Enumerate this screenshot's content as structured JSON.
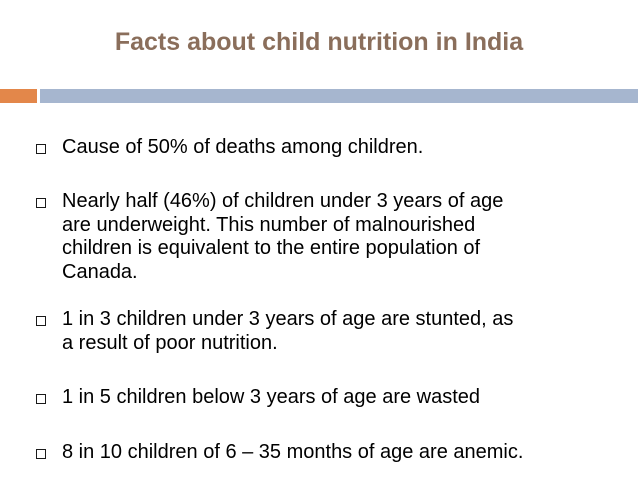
{
  "slide": {
    "title": "Facts about child nutrition in India",
    "colors": {
      "title": "#8a6e5b",
      "accent_orange": "#e3874a",
      "accent_blue": "#a6b6cf",
      "text": "#000000"
    },
    "bullet_icon": "square-bullet-icon",
    "bullets": [
      "Cause of 50% of deaths among children.",
      "Nearly half (46%) of children under 3 years of age\nare underweight. This number of malnourished\nchildren is equivalent to the entire population of\nCanada.",
      "1 in 3 children under 3 years of age are stunted, as\na result of poor nutrition.",
      "1 in 5 children below 3 years of age are wasted",
      "8 in 10 children of 6 – 35 months of age are anemic."
    ]
  }
}
